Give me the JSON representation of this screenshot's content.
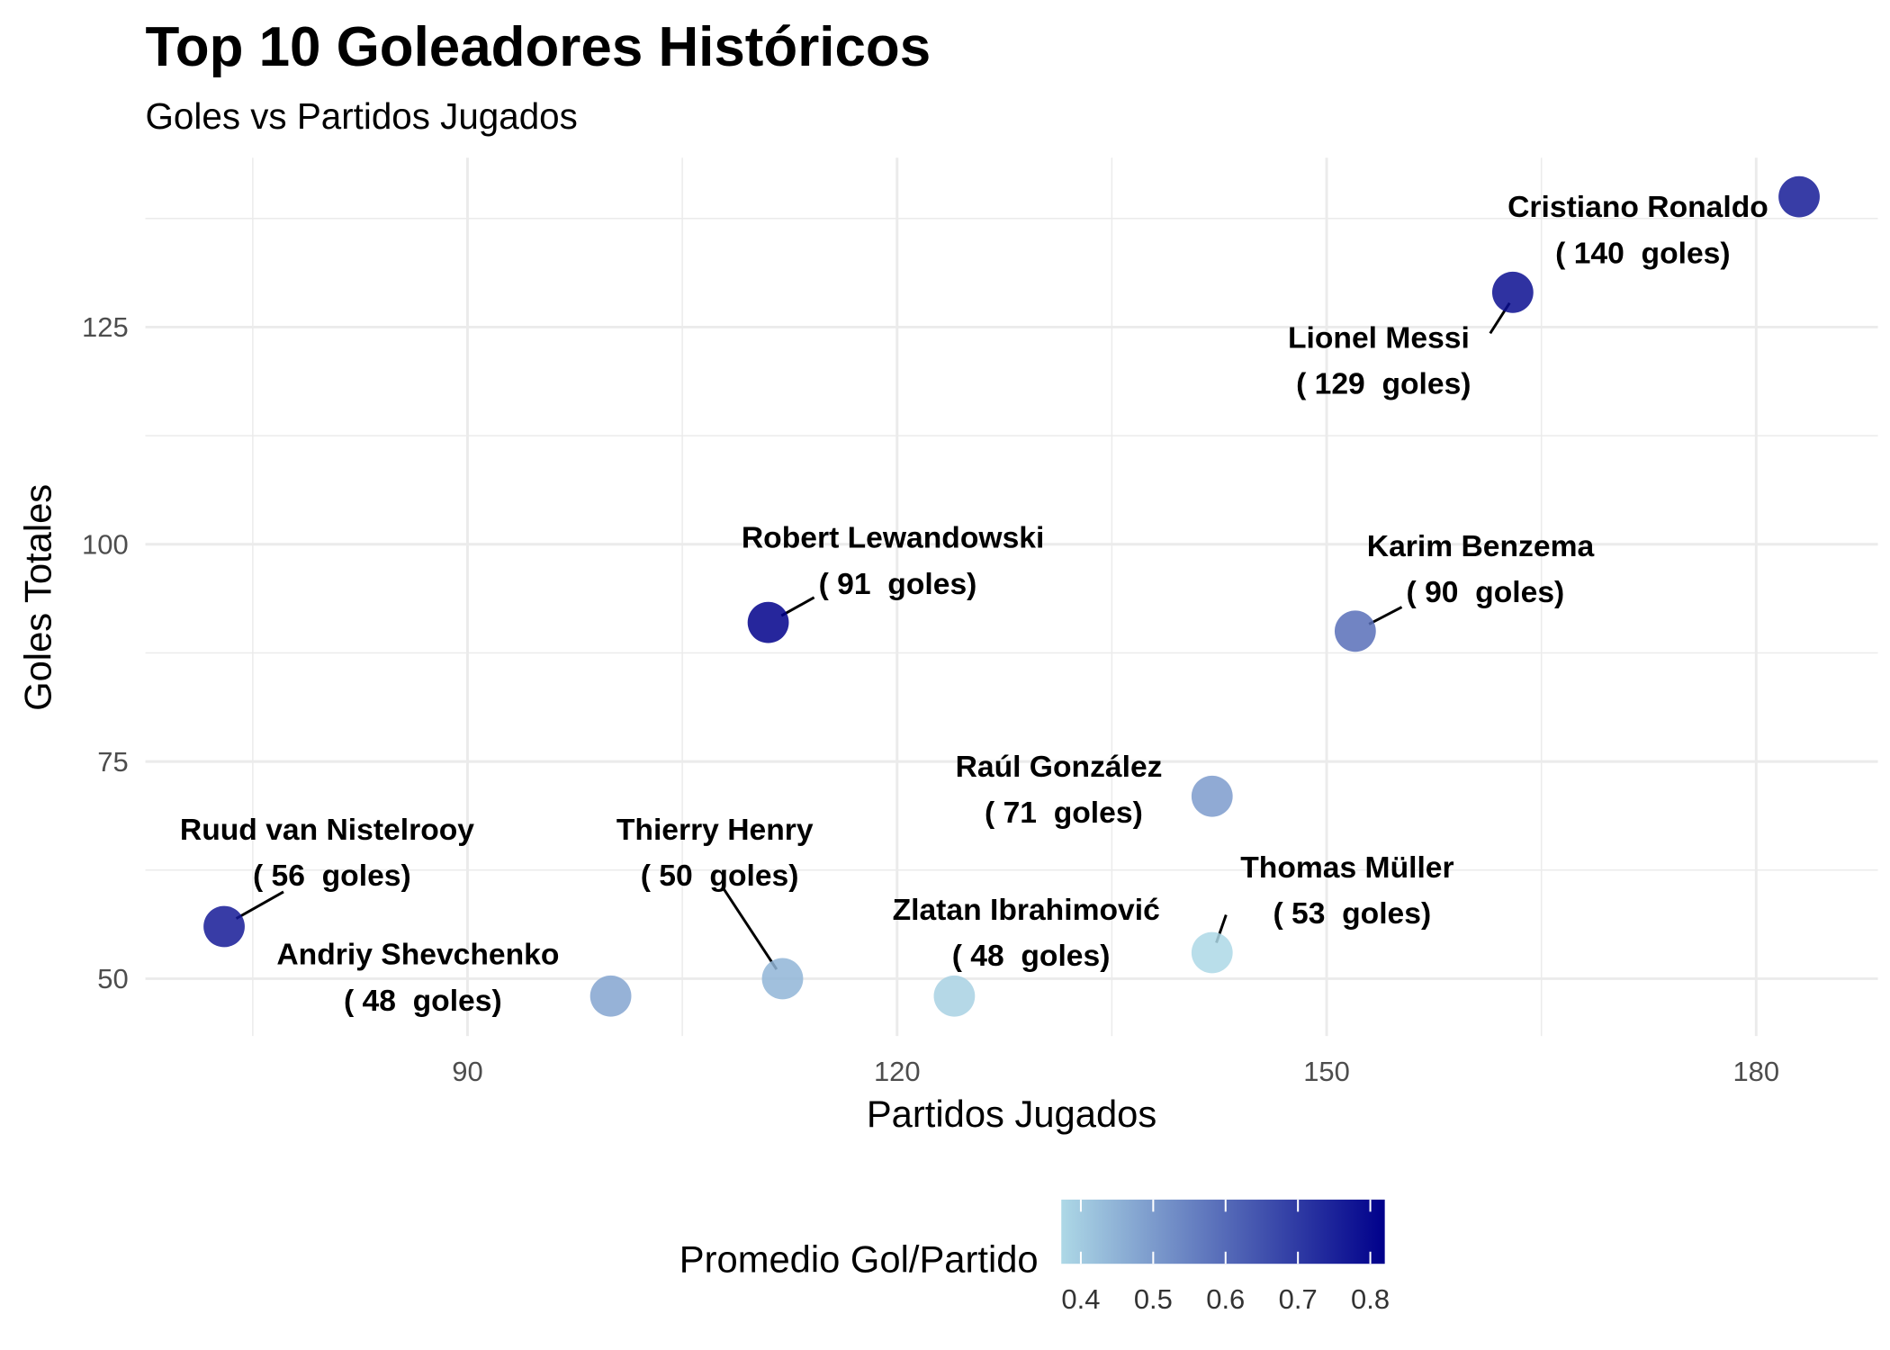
{
  "chart_data": {
    "type": "scatter",
    "title": "Top 10 Goleadores Históricos",
    "subtitle": "Goles vs Partidos Jugados",
    "xlabel": "Partidos Jugados",
    "ylabel": "Goles Totales",
    "xlim": [
      67.5,
      188.5
    ],
    "ylim": [
      43.4,
      144.5
    ],
    "xticks": [
      90,
      120,
      150,
      180
    ],
    "yticks": [
      50,
      75,
      100,
      125
    ],
    "grid": true,
    "goal_suffix": "goles",
    "points": [
      {
        "name": "Cristiano Ronaldo",
        "x": 183,
        "y": 140,
        "avg": 0.765
      },
      {
        "name": "Lionel Messi",
        "x": 163,
        "y": 129,
        "avg": 0.791
      },
      {
        "name": "Robert Lewandowski",
        "x": 111,
        "y": 91,
        "avg": 0.82
      },
      {
        "name": "Karim Benzema",
        "x": 152,
        "y": 90,
        "avg": 0.592
      },
      {
        "name": "Raúl González",
        "x": 142,
        "y": 71,
        "avg": 0.5
      },
      {
        "name": "Thomas Müller",
        "x": 142,
        "y": 53,
        "avg": 0.373
      },
      {
        "name": "Zlatan Ibrahimović",
        "x": 124,
        "y": 48,
        "avg": 0.387
      },
      {
        "name": "Thierry Henry",
        "x": 112,
        "y": 50,
        "avg": 0.446
      },
      {
        "name": "Andriy Shevchenko",
        "x": 100,
        "y": 48,
        "avg": 0.48
      },
      {
        "name": "Ruud van Nistelrooy",
        "x": 73,
        "y": 56,
        "avg": 0.767
      }
    ],
    "legend": {
      "title": "Promedio Gol/Partido",
      "placement": "bottom",
      "range": [
        0.373,
        0.82
      ],
      "ticks": [
        "0.4",
        "0.5",
        "0.6",
        "0.7",
        "0.8"
      ],
      "low_color": "#ADD8E6",
      "high_color": "#00008B"
    }
  }
}
